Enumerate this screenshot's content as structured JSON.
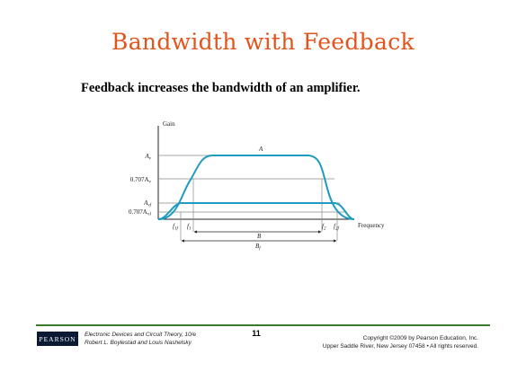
{
  "slide": {
    "title": "Bandwidth with Feedback",
    "subtitle": "Feedback increases the bandwidth of an amplifier."
  },
  "figure": {
    "y_axis_label": "Gain",
    "x_axis_label": "Frequency",
    "curve_label": "A",
    "y_labels": {
      "av": "A",
      "av_sub": "v",
      "av707": "0.707A",
      "av707_sub": "v",
      "avf": "A",
      "avf_sub": "vf",
      "avf707": "0.707A",
      "avf707_sub": "vf"
    },
    "x_labels": {
      "f1f": "f",
      "f1f_sub": "1f",
      "f1": "f",
      "f1_sub": "1",
      "f2": "f",
      "f2_sub": "2",
      "f2f": "f",
      "f2f_sub": "2f"
    },
    "bandwidth_labels": {
      "b": "B",
      "bf": "B",
      "bf_sub": "f"
    },
    "colors": {
      "curve": "#1f9bbf",
      "guide": "#8a8a8a"
    }
  },
  "footer": {
    "logo": "PEARSON",
    "book_line1": "Electronic Devices and Circuit Theory, 10/e",
    "book_line2": "Robert L. Boylestad and Louis Nashelsky",
    "page_number": "11",
    "copyright_line1": "Copyright ©2009 by Pearson Education, Inc.",
    "copyright_line2": "Upper Saddle River, New Jersey 07458 • All rights reserved."
  }
}
